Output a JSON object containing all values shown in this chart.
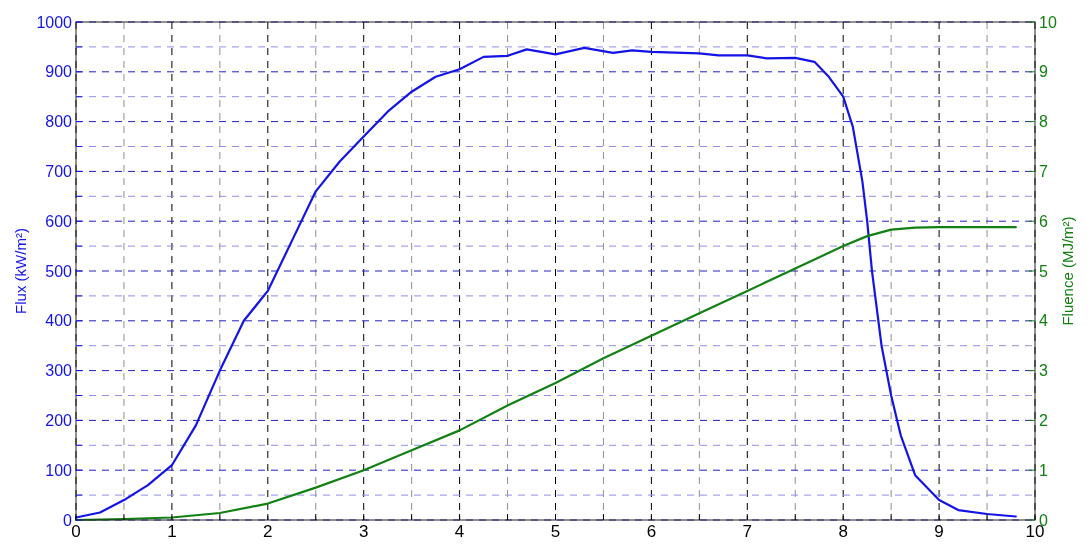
{
  "chart_data": {
    "type": "line",
    "ylabel": "Flux (kW/m²)",
    "y2label": "Fluence (MJ/m²)",
    "xlim": [
      0,
      10
    ],
    "ylim": [
      0,
      1000
    ],
    "y2lim": [
      0,
      10
    ],
    "xticks": [
      0,
      {
        "value": 0.5,
        "label": null
      },
      1,
      {
        "value": 1.5,
        "label": null
      },
      2,
      {
        "value": 2.5,
        "label": null
      },
      3,
      {
        "value": 3.5,
        "label": null
      },
      4,
      {
        "value": 4.5,
        "label": null
      },
      5,
      {
        "value": 5.5,
        "label": null
      },
      6,
      {
        "value": 6.5,
        "label": null
      },
      7,
      {
        "value": 7.5,
        "label": null
      },
      8,
      {
        "value": 8.5,
        "label": null
      },
      9,
      {
        "value": 9.5,
        "label": null
      },
      10
    ],
    "yticks": [
      0,
      {
        "value": 50,
        "label": null
      },
      100,
      {
        "value": 150,
        "label": null
      },
      200,
      {
        "value": 250,
        "label": null
      },
      300,
      {
        "value": 350,
        "label": null
      },
      400,
      {
        "value": 450,
        "label": null
      },
      500,
      {
        "value": 550,
        "label": null
      },
      600,
      {
        "value": 650,
        "label": null
      },
      700,
      {
        "value": 750,
        "label": null
      },
      800,
      {
        "value": 850,
        "label": null
      },
      900,
      {
        "value": 950,
        "label": null
      },
      1000
    ],
    "y2ticks": [
      0,
      1,
      2,
      3,
      4,
      5,
      6,
      7,
      8,
      9,
      10
    ],
    "grid": true,
    "line_style": "solid",
    "marker": "none",
    "series": [
      {
        "color": "#1414e6",
        "x": [
          0,
          0.25,
          0.5,
          0.75,
          1,
          1.25,
          1.5,
          1.75,
          2,
          2.25,
          2.5,
          2.75,
          3,
          3.25,
          3.5,
          3.75,
          4,
          4.25,
          4.5,
          4.7,
          5,
          5.3,
          5.6,
          5.8,
          6,
          6.5,
          6.7,
          7,
          7.2,
          7.5,
          7.7,
          7.85,
          8,
          8.1,
          8.2,
          8.25,
          8.3,
          8.4,
          8.5,
          8.6,
          8.75,
          9,
          9.2,
          9.5,
          9.8
        ],
        "values": [
          5,
          15,
          40,
          70,
          110,
          190,
          300,
          400,
          460,
          560,
          660,
          720,
          770,
          820,
          860,
          890,
          905,
          930,
          932,
          945,
          935,
          948,
          938,
          943,
          940,
          937,
          933,
          933,
          927,
          928,
          920,
          890,
          850,
          790,
          680,
          600,
          500,
          350,
          250,
          170,
          90,
          40,
          20,
          12,
          7
        ]
      },
      {
        "color": "#128012",
        "axis": "y2",
        "x": [
          0,
          0.5,
          1,
          1.5,
          2,
          2.5,
          3,
          3.5,
          4,
          4.5,
          5,
          5.5,
          6,
          6.5,
          7,
          7.5,
          8,
          8.25,
          8.5,
          8.75,
          9,
          9.8
        ],
        "values": [
          0,
          0.02,
          0.05,
          0.14,
          0.33,
          0.65,
          1.0,
          1.4,
          1.8,
          2.3,
          2.75,
          3.25,
          3.7,
          4.15,
          4.6,
          5.05,
          5.5,
          5.7,
          5.83,
          5.87,
          5.88,
          5.88
        ]
      }
    ]
  }
}
